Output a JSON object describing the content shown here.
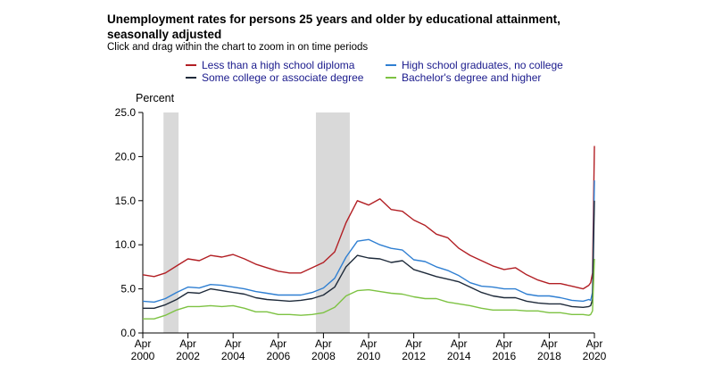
{
  "title": "Unemployment rates for persons 25 years and older by educational attainment, seasonally adjusted",
  "subtitle": "Click and drag within the chart to zoom in on time periods",
  "chart_data": {
    "type": "line",
    "ylabel": "Percent",
    "ylim": [
      0,
      25
    ],
    "yticks": [
      "0.0",
      "5.0",
      "10.0",
      "15.0",
      "20.0",
      "25.0"
    ],
    "xlim": [
      "2000-04",
      "2020-04"
    ],
    "xticks": [
      {
        "date": "2000-04",
        "label": [
          "Apr",
          "2000"
        ]
      },
      {
        "date": "2002-04",
        "label": [
          "Apr",
          "2002"
        ]
      },
      {
        "date": "2004-04",
        "label": [
          "Apr",
          "2004"
        ]
      },
      {
        "date": "2006-04",
        "label": [
          "Apr",
          "2006"
        ]
      },
      {
        "date": "2008-04",
        "label": [
          "Apr",
          "2008"
        ]
      },
      {
        "date": "2010-04",
        "label": [
          "Apr",
          "2010"
        ]
      },
      {
        "date": "2012-04",
        "label": [
          "Apr",
          "2012"
        ]
      },
      {
        "date": "2014-04",
        "label": [
          "Apr",
          "2014"
        ]
      },
      {
        "date": "2016-04",
        "label": [
          "Apr",
          "2016"
        ]
      },
      {
        "date": "2018-04",
        "label": [
          "Apr",
          "2018"
        ]
      },
      {
        "date": "2020-04",
        "label": [
          "Apr",
          "2020"
        ]
      }
    ],
    "recessions": [
      [
        "2001-03",
        "2001-11"
      ],
      [
        "2007-12",
        "2009-06"
      ]
    ],
    "legend_position": "top",
    "series": [
      {
        "name": "Less than a high school diploma",
        "color": "#b21f24",
        "x": [
          "2000-04",
          "2000-10",
          "2001-04",
          "2001-10",
          "2002-04",
          "2002-10",
          "2003-04",
          "2003-10",
          "2004-04",
          "2004-10",
          "2005-04",
          "2005-10",
          "2006-04",
          "2006-10",
          "2007-04",
          "2007-10",
          "2008-04",
          "2008-10",
          "2009-04",
          "2009-10",
          "2010-04",
          "2010-10",
          "2011-04",
          "2011-10",
          "2012-04",
          "2012-10",
          "2013-04",
          "2013-10",
          "2014-04",
          "2014-10",
          "2015-04",
          "2015-10",
          "2016-04",
          "2016-10",
          "2017-04",
          "2017-10",
          "2018-04",
          "2018-10",
          "2019-04",
          "2019-10",
          "2020-01",
          "2020-02",
          "2020-03",
          "2020-04"
        ],
        "y": [
          6.6,
          6.4,
          6.8,
          7.6,
          8.4,
          8.2,
          8.8,
          8.6,
          8.9,
          8.4,
          7.8,
          7.4,
          7.0,
          6.8,
          6.8,
          7.4,
          8.0,
          9.2,
          12.5,
          15.0,
          14.5,
          15.2,
          14.0,
          13.8,
          12.8,
          12.2,
          11.2,
          10.8,
          9.6,
          8.8,
          8.2,
          7.6,
          7.2,
          7.4,
          6.6,
          6.0,
          5.6,
          5.6,
          5.3,
          5.0,
          5.4,
          5.7,
          6.8,
          21.2
        ]
      },
      {
        "name": "High school graduates, no college",
        "color": "#2f7fd2",
        "x": [
          "2000-04",
          "2000-10",
          "2001-04",
          "2001-10",
          "2002-04",
          "2002-10",
          "2003-04",
          "2003-10",
          "2004-04",
          "2004-10",
          "2005-04",
          "2005-10",
          "2006-04",
          "2006-10",
          "2007-04",
          "2007-10",
          "2008-04",
          "2008-10",
          "2009-04",
          "2009-10",
          "2010-04",
          "2010-10",
          "2011-04",
          "2011-10",
          "2012-04",
          "2012-10",
          "2013-04",
          "2013-10",
          "2014-04",
          "2014-10",
          "2015-04",
          "2015-10",
          "2016-04",
          "2016-10",
          "2017-04",
          "2017-10",
          "2018-04",
          "2018-10",
          "2019-04",
          "2019-10",
          "2020-01",
          "2020-02",
          "2020-03",
          "2020-04"
        ],
        "y": [
          3.6,
          3.5,
          3.9,
          4.6,
          5.2,
          5.1,
          5.5,
          5.4,
          5.2,
          5.0,
          4.7,
          4.5,
          4.3,
          4.3,
          4.3,
          4.6,
          5.1,
          6.2,
          8.6,
          10.4,
          10.6,
          10.0,
          9.6,
          9.4,
          8.3,
          8.1,
          7.5,
          7.1,
          6.5,
          5.7,
          5.3,
          5.2,
          5.0,
          5.0,
          4.4,
          4.2,
          4.2,
          4.0,
          3.7,
          3.6,
          3.8,
          3.7,
          4.6,
          17.3
        ]
      },
      {
        "name": "Some college or associate degree",
        "color": "#1e2a3a",
        "x": [
          "2000-04",
          "2000-10",
          "2001-04",
          "2001-10",
          "2002-04",
          "2002-10",
          "2003-04",
          "2003-10",
          "2004-04",
          "2004-10",
          "2005-04",
          "2005-10",
          "2006-04",
          "2006-10",
          "2007-04",
          "2007-10",
          "2008-04",
          "2008-10",
          "2009-04",
          "2009-10",
          "2010-04",
          "2010-10",
          "2011-04",
          "2011-10",
          "2012-04",
          "2012-10",
          "2013-04",
          "2013-10",
          "2014-04",
          "2014-10",
          "2015-04",
          "2015-10",
          "2016-04",
          "2016-10",
          "2017-04",
          "2017-10",
          "2018-04",
          "2018-10",
          "2019-04",
          "2019-10",
          "2020-01",
          "2020-02",
          "2020-03",
          "2020-04"
        ],
        "y": [
          2.8,
          2.8,
          3.2,
          3.8,
          4.6,
          4.5,
          5.0,
          4.8,
          4.6,
          4.4,
          4.0,
          3.8,
          3.7,
          3.6,
          3.7,
          3.9,
          4.3,
          5.2,
          7.5,
          8.8,
          8.5,
          8.4,
          8.0,
          8.2,
          7.2,
          6.8,
          6.4,
          6.1,
          5.8,
          5.2,
          4.6,
          4.2,
          4.0,
          4.0,
          3.6,
          3.4,
          3.3,
          3.3,
          3.0,
          2.9,
          3.0,
          3.1,
          3.8,
          15.0
        ]
      },
      {
        "name": "Bachelor's degree and higher",
        "color": "#7dc242",
        "x": [
          "2000-04",
          "2000-10",
          "2001-04",
          "2001-10",
          "2002-04",
          "2002-10",
          "2003-04",
          "2003-10",
          "2004-04",
          "2004-10",
          "2005-04",
          "2005-10",
          "2006-04",
          "2006-10",
          "2007-04",
          "2007-10",
          "2008-04",
          "2008-10",
          "2009-04",
          "2009-10",
          "2010-04",
          "2010-10",
          "2011-04",
          "2011-10",
          "2012-04",
          "2012-10",
          "2013-04",
          "2013-10",
          "2014-04",
          "2014-10",
          "2015-04",
          "2015-10",
          "2016-04",
          "2016-10",
          "2017-04",
          "2017-10",
          "2018-04",
          "2018-10",
          "2019-04",
          "2019-10",
          "2020-01",
          "2020-02",
          "2020-03",
          "2020-04"
        ],
        "y": [
          1.6,
          1.6,
          2.0,
          2.6,
          3.0,
          3.0,
          3.1,
          3.0,
          3.1,
          2.8,
          2.4,
          2.4,
          2.1,
          2.1,
          2.0,
          2.1,
          2.3,
          2.9,
          4.2,
          4.8,
          4.9,
          4.7,
          4.5,
          4.4,
          4.1,
          3.9,
          3.9,
          3.5,
          3.3,
          3.1,
          2.8,
          2.6,
          2.6,
          2.6,
          2.5,
          2.5,
          2.3,
          2.3,
          2.1,
          2.1,
          2.0,
          2.1,
          2.5,
          8.4
        ]
      }
    ]
  }
}
